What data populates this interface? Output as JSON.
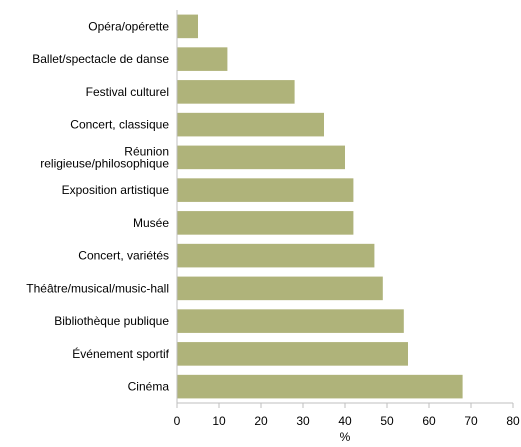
{
  "chart_data": {
    "type": "bar",
    "orientation": "horizontal",
    "categories": [
      "Opéra/opérette",
      "Ballet/spectacle de danse",
      "Festival culturel",
      "Concert, classique",
      "Réunion religieuse/philosophique",
      "Exposition artistique",
      "Musée",
      "Concert, variétés",
      "Théâtre/musical/music-hall",
      "Bibliothèque publique",
      "Événement sportif",
      "Cinéma"
    ],
    "category_lines": [
      [
        "Opéra/opérette"
      ],
      [
        "Ballet/spectacle de danse"
      ],
      [
        "Festival culturel"
      ],
      [
        "Concert, classique"
      ],
      [
        "Réunion",
        "religieuse/philosophique"
      ],
      [
        "Exposition artistique"
      ],
      [
        "Musée"
      ],
      [
        "Concert, variétés"
      ],
      [
        "Théâtre/musical/music-hall"
      ],
      [
        "Bibliothèque publique"
      ],
      [
        "Événement sportif"
      ],
      [
        "Cinéma"
      ]
    ],
    "values": [
      5,
      12,
      28,
      35,
      40,
      42,
      42,
      47,
      49,
      54,
      55,
      68
    ],
    "xlabel": "%",
    "xlim": [
      0,
      80
    ],
    "xticks": [
      0,
      10,
      20,
      30,
      40,
      50,
      60,
      70,
      80
    ],
    "grid": false,
    "bar_color": "#afb37a",
    "axis_color": "#bfbfbf"
  }
}
